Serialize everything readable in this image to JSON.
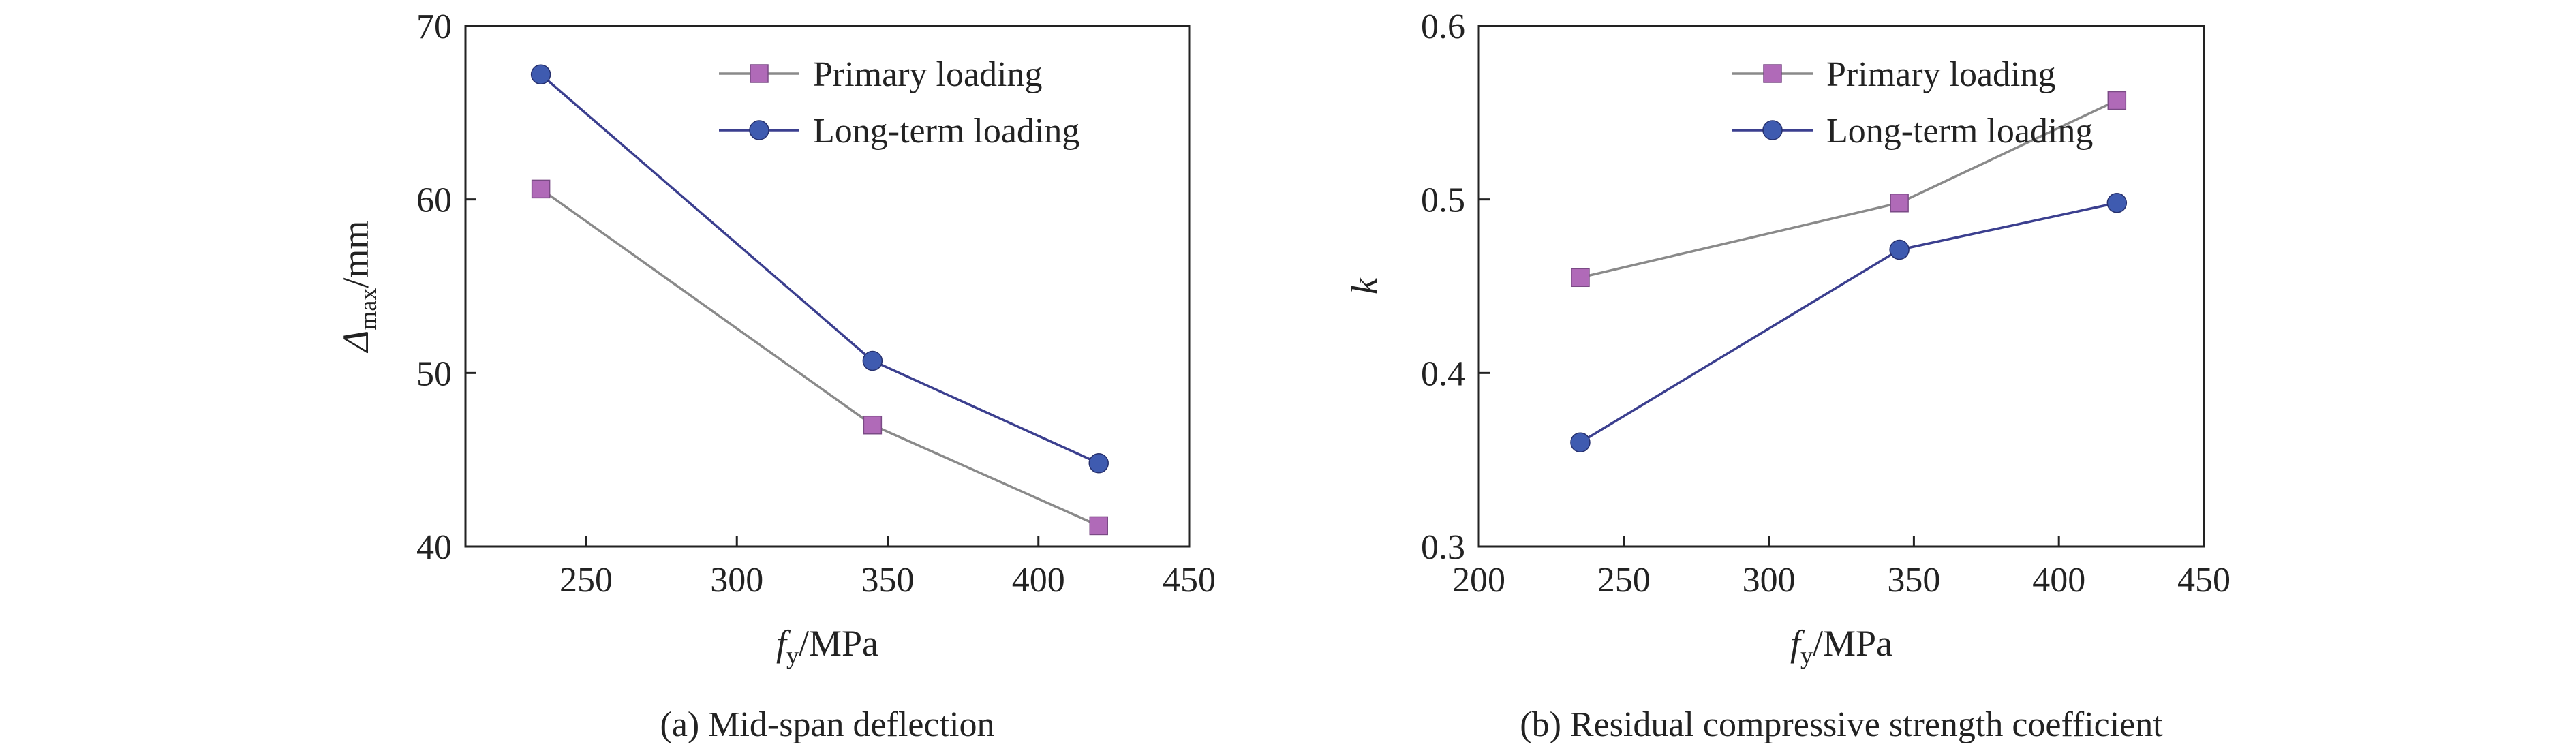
{
  "colors": {
    "primary_line": "#8a8a8a",
    "primary_marker": "#b06ab8",
    "longterm_line": "#3b3f8f",
    "longterm_marker": "#3f5bb0",
    "axis": "#222222"
  },
  "chart_data": [
    {
      "type": "line",
      "caption": "(a) Mid-span deflection",
      "xlabel_main": "f",
      "xlabel_sub": "y",
      "xlabel_unit": "/MPa",
      "ylabel_main": "Δ",
      "ylabel_sub": "max",
      "ylabel_unit": "/mm",
      "xlim": [
        210,
        450
      ],
      "ylim": [
        40,
        70
      ],
      "xticks": [
        250,
        300,
        350,
        400,
        450
      ],
      "yticks": [
        40,
        50,
        60,
        70
      ],
      "legend_position": "top-right",
      "grid": false,
      "series": [
        {
          "name": "Primary loading",
          "marker": "square",
          "x": [
            235,
            345,
            420
          ],
          "y": [
            60.6,
            47.0,
            41.2
          ]
        },
        {
          "name": "Long-term loading",
          "marker": "circle",
          "x": [
            235,
            345,
            420
          ],
          "y": [
            67.2,
            50.7,
            44.8
          ]
        }
      ]
    },
    {
      "type": "line",
      "caption": "(b) Residual compressive strength coefficient",
      "xlabel_main": "f",
      "xlabel_sub": "y",
      "xlabel_unit": "/MPa",
      "ylabel_main": "k",
      "ylabel_sub": "",
      "ylabel_unit": "",
      "xlim": [
        200,
        450
      ],
      "ylim": [
        0.3,
        0.6
      ],
      "xticks": [
        200,
        250,
        300,
        350,
        400,
        450
      ],
      "yticks": [
        0.3,
        0.4,
        0.5,
        0.6
      ],
      "legend_position": "top-right",
      "grid": false,
      "series": [
        {
          "name": "Primary loading",
          "marker": "square",
          "x": [
            235,
            345,
            420
          ],
          "y": [
            0.455,
            0.498,
            0.557
          ]
        },
        {
          "name": "Long-term loading",
          "marker": "circle",
          "x": [
            235,
            345,
            420
          ],
          "y": [
            0.36,
            0.471,
            0.498
          ]
        }
      ]
    }
  ]
}
